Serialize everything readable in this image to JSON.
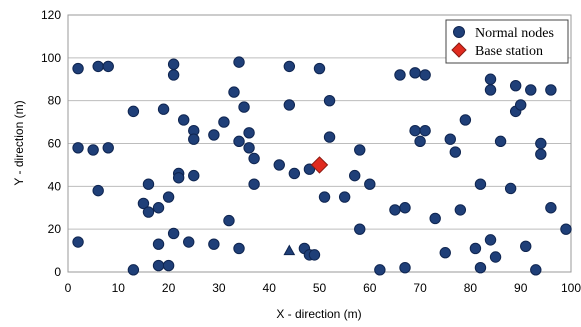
{
  "chart_data": {
    "type": "scatter",
    "xlabel": "X - direction (m)",
    "ylabel": "Y - direction (m)",
    "xlim": [
      0,
      100
    ],
    "ylim": [
      0,
      120
    ],
    "x_ticks": [
      0,
      10,
      20,
      30,
      40,
      50,
      60,
      70,
      80,
      90,
      100
    ],
    "y_ticks": [
      0,
      20,
      40,
      60,
      80,
      100,
      120
    ],
    "grid": "horizontal",
    "legend_position": "top-right",
    "colors": {
      "normal": "#1f3f78",
      "base": "#e02b1f"
    },
    "series": [
      {
        "name": "Normal nodes",
        "marker": "circle",
        "x": [
          2,
          6,
          8,
          21,
          21,
          34,
          44,
          50,
          66,
          69,
          71,
          84,
          89,
          92,
          96,
          13,
          19,
          23,
          25,
          25,
          33,
          35,
          36,
          44,
          52,
          69,
          71,
          76,
          79,
          84,
          89,
          90,
          94,
          2,
          5,
          8,
          15,
          16,
          16,
          18,
          20,
          22,
          25,
          29,
          31,
          34,
          36,
          37,
          37,
          42,
          45,
          48,
          51,
          52,
          55,
          57,
          58,
          60,
          65,
          67,
          70,
          77,
          78,
          82,
          82,
          88,
          91,
          93,
          94,
          96,
          99,
          2,
          6,
          13,
          18,
          18,
          20,
          21,
          22,
          24,
          29,
          32,
          34,
          47,
          48,
          49,
          58,
          62,
          67,
          73,
          75,
          81,
          84,
          85,
          86
        ],
        "y": [
          95,
          96,
          96,
          92,
          97,
          98,
          96,
          95,
          92,
          93,
          92,
          90,
          87,
          85,
          85,
          75,
          76,
          71,
          66,
          62,
          84,
          77,
          65,
          78,
          80,
          66,
          66,
          62,
          71,
          85,
          75,
          78,
          55,
          58,
          57,
          58,
          32,
          28,
          41,
          30,
          35,
          46,
          45,
          64,
          70,
          61,
          58,
          53,
          41,
          50,
          46,
          48,
          35,
          63,
          35,
          45,
          57,
          41,
          29,
          30,
          61,
          56,
          29,
          41,
          2,
          39,
          12,
          1,
          60,
          30,
          20,
          14,
          38,
          1,
          13,
          3,
          3,
          18,
          44,
          14,
          13,
          24,
          11,
          11,
          8,
          8,
          20,
          1,
          2,
          25,
          9,
          11,
          15,
          7,
          61
        ],
        "y_extra_note": ""
      },
      {
        "name": "Base station",
        "marker": "diamond",
        "x": [
          50
        ],
        "y": [
          50
        ]
      }
    ],
    "extra_marks": [
      {
        "marker": "triangle",
        "x": 44,
        "y": 10
      }
    ]
  }
}
